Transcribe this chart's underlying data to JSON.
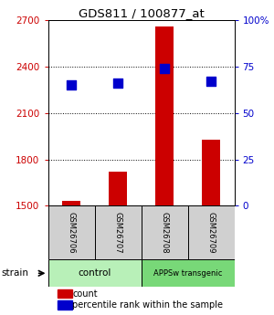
{
  "title": "GDS811 / 100877_at",
  "samples": [
    "GSM26706",
    "GSM26707",
    "GSM26708",
    "GSM26709"
  ],
  "count_values": [
    1530,
    1720,
    2660,
    1930
  ],
  "percentile_values": [
    65,
    66,
    74,
    67
  ],
  "ylim_left": [
    1500,
    2700
  ],
  "ylim_right": [
    0,
    100
  ],
  "yticks_left": [
    1500,
    1800,
    2100,
    2400,
    2700
  ],
  "yticks_right": [
    0,
    25,
    50,
    75,
    100
  ],
  "ytick_labels_left": [
    "1500",
    "1800",
    "2100",
    "2400",
    "2700"
  ],
  "ytick_labels_right": [
    "0",
    "25",
    "50",
    "75",
    "100%"
  ],
  "groups": [
    {
      "label": "control",
      "samples": [
        0,
        1
      ],
      "color": "#b8f0b8"
    },
    {
      "label": "APPSw transgenic",
      "samples": [
        2,
        3
      ],
      "color": "#78d878"
    }
  ],
  "bar_color": "#cc0000",
  "dot_color": "#0000cc",
  "bar_width": 0.38,
  "dot_size": 45,
  "strain_label": "strain",
  "legend_count_label": "count",
  "legend_pct_label": "percentile rank within the sample",
  "left_tick_color": "#cc0000",
  "right_tick_color": "#0000cc",
  "gsm_box_color": "#d0d0d0"
}
